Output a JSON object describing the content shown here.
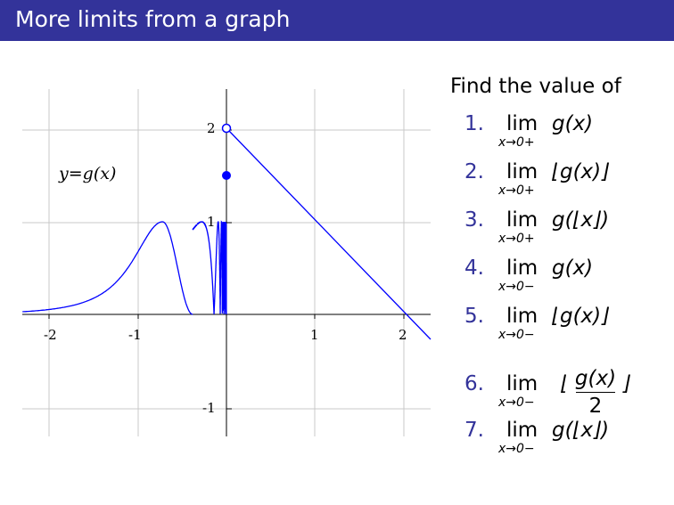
{
  "slide": {
    "title": "More limits from a graph",
    "accent_color": "#33339a"
  },
  "graph": {
    "label": "y=g(x)",
    "x_ticks": [
      "-2",
      "-1",
      "1",
      "2"
    ],
    "y_ticks": [
      "2",
      "1",
      "-1"
    ],
    "curve_color": "#0000ff"
  },
  "questions": {
    "prompt": "Find the value of",
    "items": [
      {
        "num": "1.",
        "lim": "lim",
        "sub": "x→0+",
        "expr": "g(x)"
      },
      {
        "num": "2.",
        "lim": "lim",
        "sub": "x→0+",
        "expr": "⌊g(x)⌋"
      },
      {
        "num": "3.",
        "lim": "lim",
        "sub": "x→0+",
        "expr": "g(⌊x⌋)"
      },
      {
        "num": "4.",
        "lim": "lim",
        "sub": "x→0−",
        "expr": "g(x)"
      },
      {
        "num": "5.",
        "lim": "lim",
        "sub": "x→0−",
        "expr": "⌊g(x)⌋"
      },
      {
        "num": "6.",
        "lim": "lim",
        "sub": "x→0−",
        "frac_num": "g(x)",
        "frac_den": "2",
        "left": "⌊",
        "right": "⌋"
      },
      {
        "num": "7.",
        "lim": "lim",
        "sub": "x→0−",
        "expr": "g(⌊x⌋)"
      }
    ]
  }
}
